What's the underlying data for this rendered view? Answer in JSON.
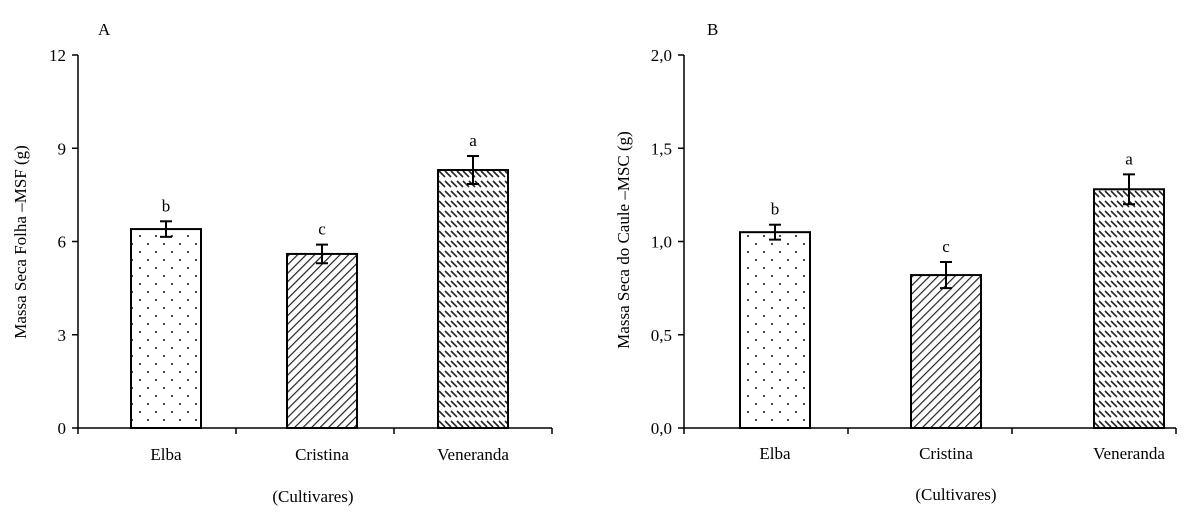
{
  "chart_data": [
    {
      "type": "bar",
      "panel_label": "A",
      "categories": [
        "Elba",
        "Cristina",
        "Veneranda"
      ],
      "values": [
        6.4,
        5.6,
        8.3
      ],
      "errors": [
        0.25,
        0.3,
        0.45
      ],
      "significance": [
        "b",
        "c",
        "a"
      ],
      "patterns": [
        "dots",
        "diag-dense",
        "diag-rows"
      ],
      "ylabel": "Massa Seca Folha –MSF (g)",
      "xlabel": "(Cultivares)",
      "ylim": [
        0,
        12
      ],
      "yticks": [
        0,
        3,
        6,
        9,
        12
      ],
      "ytick_labels": [
        "0",
        "3",
        "6",
        "9",
        "12"
      ],
      "grid": false
    },
    {
      "type": "bar",
      "panel_label": "B",
      "categories": [
        "Elba",
        "Cristina",
        "Veneranda"
      ],
      "values": [
        1.05,
        0.82,
        1.28
      ],
      "errors": [
        0.04,
        0.07,
        0.08
      ],
      "significance": [
        "b",
        "c",
        "a"
      ],
      "patterns": [
        "dots",
        "diag-dense",
        "diag-rows"
      ],
      "ylabel": "Massa Seca do  Caule –MSC (g)",
      "xlabel": "(Cultivares)",
      "ylim": [
        0,
        2
      ],
      "yticks": [
        0,
        0.5,
        1,
        1.5,
        2
      ],
      "ytick_labels": [
        "0,0",
        "0,5",
        "1,0",
        "1,5",
        "2,0"
      ],
      "grid": false
    }
  ]
}
